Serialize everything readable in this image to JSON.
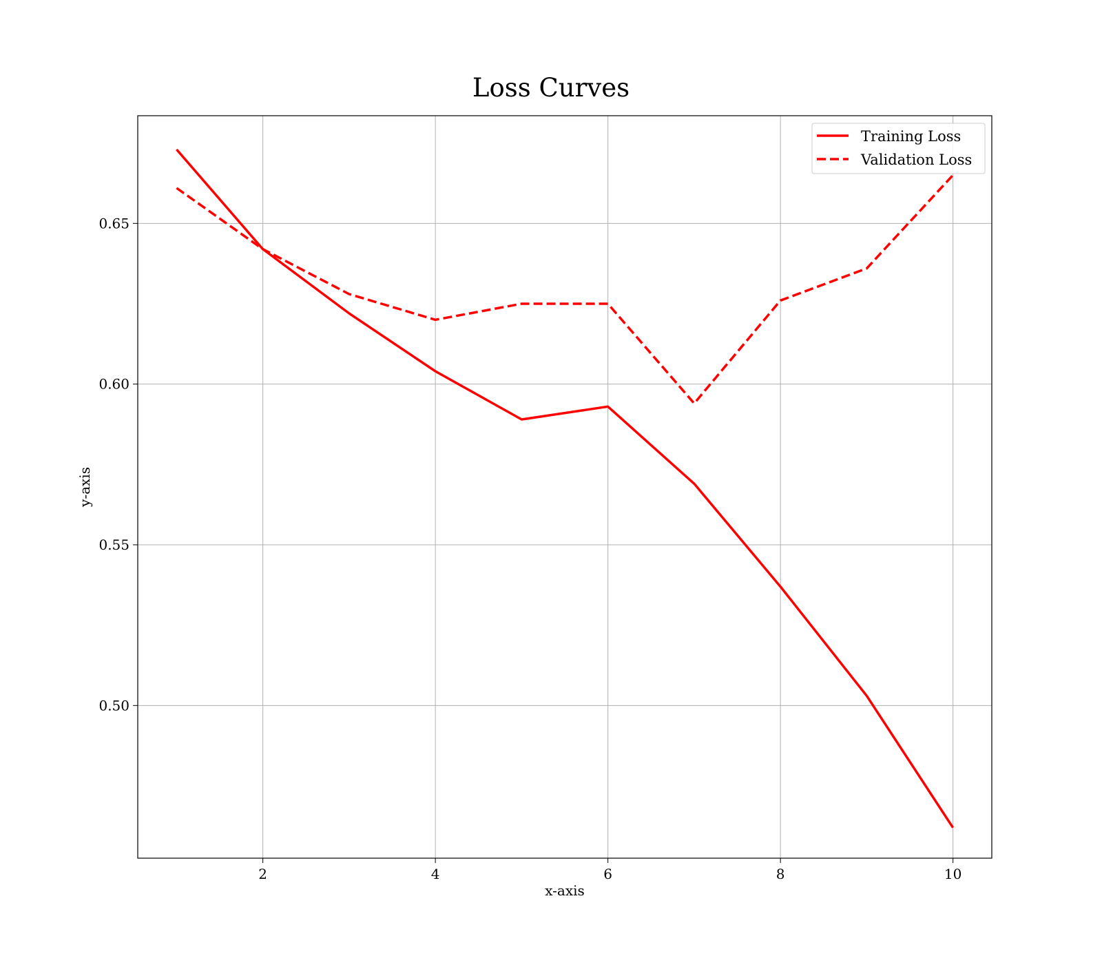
{
  "chart_data": {
    "type": "line",
    "title": "Loss Curves",
    "xlabel": "x-axis",
    "ylabel": "y-axis",
    "x": [
      1,
      2,
      3,
      4,
      5,
      6,
      7,
      8,
      9,
      10
    ],
    "series": [
      {
        "name": "Training Loss",
        "style": "solid",
        "color": "#ff0000",
        "values": [
          0.673,
          0.642,
          0.622,
          0.604,
          0.589,
          0.593,
          0.569,
          0.537,
          0.503,
          0.462
        ]
      },
      {
        "name": "Validation Loss",
        "style": "dashed",
        "color": "#ff0000",
        "values": [
          0.661,
          0.642,
          0.628,
          0.62,
          0.625,
          0.625,
          0.594,
          0.626,
          0.636,
          0.665
        ]
      }
    ],
    "xlim": [
      0.55,
      10.45
    ],
    "ylim": [
      0.4525,
      0.6835
    ],
    "xticks": [
      2,
      4,
      6,
      8,
      10
    ],
    "xtick_labels": [
      "2",
      "4",
      "6",
      "8",
      "10"
    ],
    "yticks": [
      0.5,
      0.55,
      0.6,
      0.65
    ],
    "ytick_labels": [
      "0.50",
      "0.55",
      "0.60",
      "0.65"
    ],
    "grid": true,
    "legend_position": "top-right"
  }
}
